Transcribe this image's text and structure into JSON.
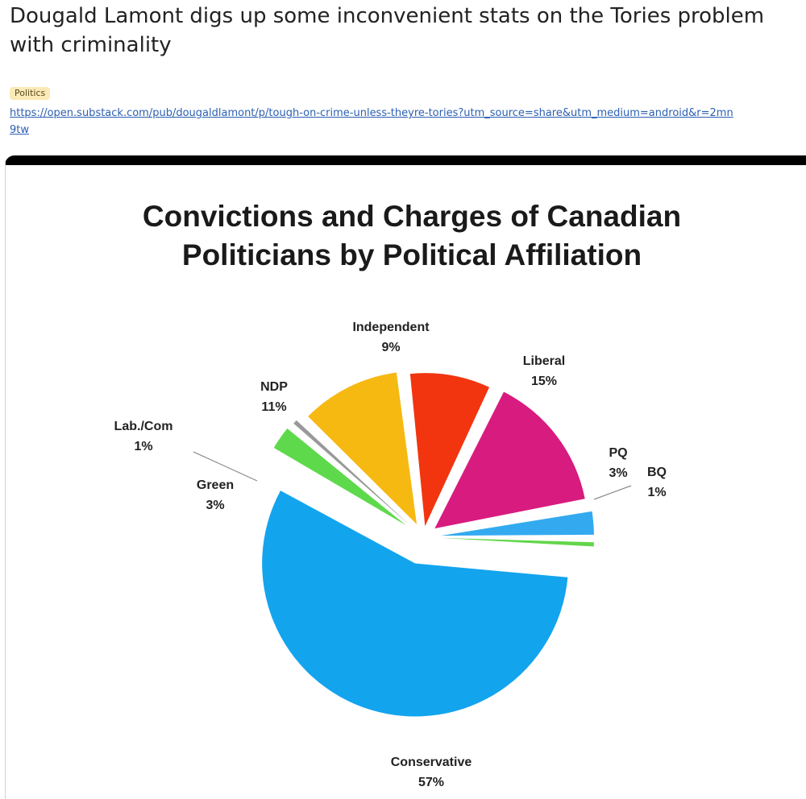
{
  "post": {
    "title": "Dougald Lamont digs up some inconvenient stats on the Tories problem with criminality",
    "tag": "Politics",
    "link": "https://open.substack.com/pub/dougaldlamont/p/tough-on-crime-unless-theyre-tories?utm_source=share&utm_medium=android&r=2mn9tw"
  },
  "chart_data": {
    "type": "pie",
    "title_lines": [
      "Convictions and Charges of Canadian",
      "Politicians by Political Affiliation"
    ],
    "slices": [
      {
        "label": "Independent",
        "value": 9,
        "display": "9%",
        "color": "#f2350f"
      },
      {
        "label": "Liberal",
        "value": 15,
        "display": "15%",
        "color": "#d81b7f"
      },
      {
        "label": "PQ",
        "value": 3,
        "display": "3%",
        "color": "#33aaf0"
      },
      {
        "label": "BQ",
        "value": 1,
        "display": "1%",
        "color": "#62d64a"
      },
      {
        "label": "Conservative",
        "value": 57,
        "display": "57%",
        "color": "#13a4ee"
      },
      {
        "label": "Green",
        "value": 3,
        "display": "3%",
        "color": "#5ed94b"
      },
      {
        "label": "Lab./Com",
        "value": 1,
        "display": "1%",
        "color": "#999999"
      },
      {
        "label": "NDP",
        "value": 11,
        "display": "11%",
        "color": "#f6b912"
      }
    ],
    "legend": "none"
  }
}
